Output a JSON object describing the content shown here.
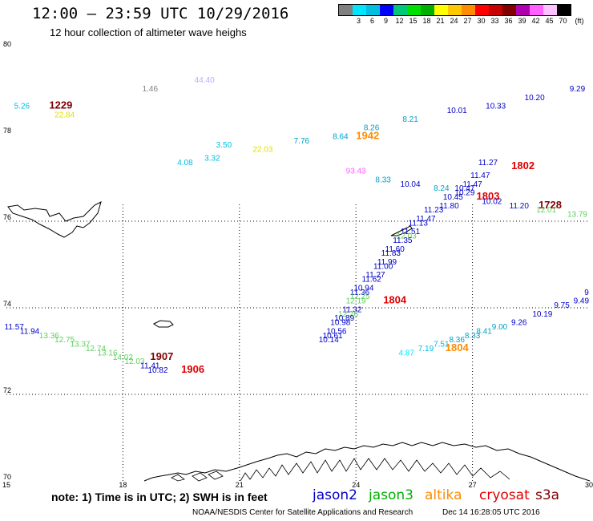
{
  "header": {
    "title": "12:00 – 23:59 UTC 10/29/2016",
    "subtitle": "12 hour collection of altimeter wave heighs"
  },
  "legend": {
    "unit": "(ft)",
    "swatches": [
      {
        "label": "",
        "color": "#808080"
      },
      {
        "label": "3",
        "color": "#00e5ff"
      },
      {
        "label": "6",
        "color": "#00bfe0"
      },
      {
        "label": "9",
        "color": "#0000ff"
      },
      {
        "label": "12",
        "color": "#00c878"
      },
      {
        "label": "15",
        "color": "#00e000"
      },
      {
        "label": "18",
        "color": "#00b000"
      },
      {
        "label": "21",
        "color": "#ffff00"
      },
      {
        "label": "24",
        "color": "#ffc800"
      },
      {
        "label": "27",
        "color": "#ff8c00"
      },
      {
        "label": "30",
        "color": "#ff0000"
      },
      {
        "label": "33",
        "color": "#c80000"
      },
      {
        "label": "36",
        "color": "#800000"
      },
      {
        "label": "39",
        "color": "#b000b0"
      },
      {
        "label": "42",
        "color": "#ff60ff"
      },
      {
        "label": "45",
        "color": "#ffc0ff"
      },
      {
        "label": "70",
        "color": "#000000"
      }
    ]
  },
  "axes": {
    "lat_labels": [
      {
        "text": "80",
        "lat": 80
      },
      {
        "text": "78",
        "lat": 78
      },
      {
        "text": "76",
        "lat": 76
      },
      {
        "text": "74",
        "lat": 74
      },
      {
        "text": "72",
        "lat": 72
      },
      {
        "text": "70",
        "lat": 70
      }
    ],
    "lon_labels": [
      {
        "text": "15",
        "lon": 15
      },
      {
        "text": "18",
        "lon": 18
      },
      {
        "text": "21",
        "lon": 21
      },
      {
        "text": "24",
        "lon": 24
      },
      {
        "text": "27",
        "lon": 27
      },
      {
        "text": "30",
        "lon": 30
      }
    ],
    "lat_range": [
      70,
      80
    ],
    "lon_range": [
      15,
      30
    ]
  },
  "observations": [
    {
      "text": "1.46",
      "lon": 18.7,
      "lat": 79.0,
      "color": "#808080"
    },
    {
      "text": "44.40",
      "lon": 20.1,
      "lat": 79.2,
      "color": "#c0a8ff"
    },
    {
      "text": "5.26",
      "lon": 15.4,
      "lat": 78.6,
      "color": "#00bfe0"
    },
    {
      "text": "1229",
      "lon": 16.4,
      "lat": 78.6,
      "color": "#800000",
      "big": true
    },
    {
      "text": "22.84",
      "lon": 16.5,
      "lat": 78.4,
      "color": "#e0e000"
    },
    {
      "text": "3.50",
      "lon": 20.6,
      "lat": 77.7,
      "color": "#00bfe0"
    },
    {
      "text": "22.03",
      "lon": 21.6,
      "lat": 77.6,
      "color": "#e0e000"
    },
    {
      "text": "3.32",
      "lon": 20.3,
      "lat": 77.4,
      "color": "#00bfe0"
    },
    {
      "text": "4.08",
      "lon": 19.6,
      "lat": 77.3,
      "color": "#00bfe0"
    },
    {
      "text": "7.76",
      "lon": 22.6,
      "lat": 77.8,
      "color": "#00a0c8"
    },
    {
      "text": "8.64",
      "lon": 23.6,
      "lat": 77.9,
      "color": "#00a0c8"
    },
    {
      "text": "1942",
      "lon": 24.3,
      "lat": 77.9,
      "color": "#ff8c00",
      "big": true
    },
    {
      "text": "8.26",
      "lon": 24.4,
      "lat": 78.1,
      "color": "#00a0c8"
    },
    {
      "text": "8.21",
      "lon": 25.4,
      "lat": 78.3,
      "color": "#00a0c8"
    },
    {
      "text": "10.01",
      "lon": 26.6,
      "lat": 78.5,
      "color": "#0000c8"
    },
    {
      "text": "10.33",
      "lon": 27.6,
      "lat": 78.6,
      "color": "#0000c8"
    },
    {
      "text": "10.20",
      "lon": 28.6,
      "lat": 78.8,
      "color": "#0000c8"
    },
    {
      "text": "9.29",
      "lon": 29.7,
      "lat": 79.0,
      "color": "#0000c8"
    },
    {
      "text": "93.43",
      "lon": 24.0,
      "lat": 77.1,
      "color": "#ff60ff"
    },
    {
      "text": "8.33",
      "lon": 24.7,
      "lat": 76.9,
      "color": "#00a0c8"
    },
    {
      "text": "10.04",
      "lon": 25.4,
      "lat": 76.8,
      "color": "#0000c8"
    },
    {
      "text": "8.24",
      "lon": 26.2,
      "lat": 76.7,
      "color": "#00a0c8"
    },
    {
      "text": "11.27",
      "lon": 27.4,
      "lat": 77.3,
      "color": "#0000c8"
    },
    {
      "text": "1802",
      "lon": 28.3,
      "lat": 77.2,
      "color": "#e00000",
      "big": true
    },
    {
      "text": "11.47",
      "lon": 27.2,
      "lat": 77.0,
      "color": "#0000c8"
    },
    {
      "text": "11.47",
      "lon": 27.0,
      "lat": 76.8,
      "color": "#0000c8"
    },
    {
      "text": "10.47",
      "lon": 26.8,
      "lat": 76.7,
      "color": "#0000c8"
    },
    {
      "text": "10.29",
      "lon": 26.8,
      "lat": 76.6,
      "color": "#0000c8"
    },
    {
      "text": "10.45",
      "lon": 26.5,
      "lat": 76.5,
      "color": "#0000c8"
    },
    {
      "text": "1803",
      "lon": 27.4,
      "lat": 76.5,
      "color": "#e00000",
      "big": true
    },
    {
      "text": "10.02",
      "lon": 27.5,
      "lat": 76.4,
      "color": "#0000c8"
    },
    {
      "text": "11.20",
      "lon": 28.2,
      "lat": 76.3,
      "color": "#0000c8"
    },
    {
      "text": "1728",
      "lon": 29.0,
      "lat": 76.3,
      "color": "#800000",
      "big": true
    },
    {
      "text": "12.01",
      "lon": 28.9,
      "lat": 76.2,
      "color": "#60d060"
    },
    {
      "text": "13.79",
      "lon": 29.7,
      "lat": 76.1,
      "color": "#60d060"
    },
    {
      "text": "11.80",
      "lon": 26.4,
      "lat": 76.3,
      "color": "#0000c8"
    },
    {
      "text": "11.23",
      "lon": 26.0,
      "lat": 76.2,
      "color": "#0000c8"
    },
    {
      "text": "11.47",
      "lon": 25.8,
      "lat": 76.0,
      "color": "#0000c8"
    },
    {
      "text": "11.13",
      "lon": 25.6,
      "lat": 75.9,
      "color": "#0000c8"
    },
    {
      "text": "11.51",
      "lon": 25.4,
      "lat": 75.7,
      "color": "#0000c8"
    },
    {
      "text": "12.03",
      "lon": 25.3,
      "lat": 75.6,
      "color": "#60d060"
    },
    {
      "text": "11.35",
      "lon": 25.2,
      "lat": 75.5,
      "color": "#0000c8"
    },
    {
      "text": "11.60",
      "lon": 25.0,
      "lat": 75.3,
      "color": "#0000c8"
    },
    {
      "text": "11.83",
      "lon": 24.9,
      "lat": 75.2,
      "color": "#0000c8"
    },
    {
      "text": "11.99",
      "lon": 24.8,
      "lat": 75.0,
      "color": "#0000c8"
    },
    {
      "text": "11.00",
      "lon": 24.7,
      "lat": 74.9,
      "color": "#0000c8"
    },
    {
      "text": "11.27",
      "lon": 24.5,
      "lat": 74.7,
      "color": "#0000c8"
    },
    {
      "text": "11.62",
      "lon": 24.4,
      "lat": 74.6,
      "color": "#0000c8"
    },
    {
      "text": "10.94",
      "lon": 24.2,
      "lat": 74.4,
      "color": "#0000c8"
    },
    {
      "text": "11.36",
      "lon": 24.1,
      "lat": 74.3,
      "color": "#0000c8"
    },
    {
      "text": "12.25",
      "lon": 24.1,
      "lat": 74.2,
      "color": "#60d060"
    },
    {
      "text": "1804",
      "lon": 25.0,
      "lat": 74.1,
      "color": "#e00000",
      "big": true
    },
    {
      "text": "12.19",
      "lon": 24.0,
      "lat": 74.1,
      "color": "#60d060"
    },
    {
      "text": "11.32",
      "lon": 23.9,
      "lat": 73.9,
      "color": "#0000c8"
    },
    {
      "text": "12.26",
      "lon": 23.8,
      "lat": 73.8,
      "color": "#60d060"
    },
    {
      "text": "10.89",
      "lon": 23.7,
      "lat": 73.7,
      "color": "#0000c8"
    },
    {
      "text": "10.98",
      "lon": 23.6,
      "lat": 73.6,
      "color": "#0000c8"
    },
    {
      "text": "10.56",
      "lon": 23.5,
      "lat": 73.4,
      "color": "#0000c8"
    },
    {
      "text": "10.61",
      "lon": 23.4,
      "lat": 73.3,
      "color": "#0000c8"
    },
    {
      "text": "10.14",
      "lon": 23.3,
      "lat": 73.2,
      "color": "#0000c8"
    },
    {
      "text": "9",
      "lon": 30.0,
      "lat": 74.3,
      "color": "#0000c8"
    },
    {
      "text": "9.49",
      "lon": 29.8,
      "lat": 74.1,
      "color": "#0000c8"
    },
    {
      "text": "9.75",
      "lon": 29.3,
      "lat": 74.0,
      "color": "#0000c8"
    },
    {
      "text": "10.19",
      "lon": 28.8,
      "lat": 73.8,
      "color": "#0000c8"
    },
    {
      "text": "9.26",
      "lon": 28.2,
      "lat": 73.6,
      "color": "#0000c8"
    },
    {
      "text": "9.00",
      "lon": 27.7,
      "lat": 73.5,
      "color": "#00a0c8"
    },
    {
      "text": "8.41",
      "lon": 27.3,
      "lat": 73.4,
      "color": "#00a0c8"
    },
    {
      "text": "8.33",
      "lon": 27.0,
      "lat": 73.3,
      "color": "#00a0c8"
    },
    {
      "text": "8.36",
      "lon": 26.6,
      "lat": 73.2,
      "color": "#00a0c8"
    },
    {
      "text": "7.51",
      "lon": 26.2,
      "lat": 73.1,
      "color": "#00bfe0"
    },
    {
      "text": "7.19",
      "lon": 25.8,
      "lat": 73.0,
      "color": "#00bfe0"
    },
    {
      "text": "1804",
      "lon": 26.6,
      "lat": 73.0,
      "color": "#ff8c00",
      "big": true
    },
    {
      "text": "4.87",
      "lon": 25.3,
      "lat": 72.9,
      "color": "#00e5ff"
    },
    {
      "text": "11.57",
      "lon": 15.2,
      "lat": 73.5,
      "color": "#0000c8"
    },
    {
      "text": "11.94",
      "lon": 15.6,
      "lat": 73.4,
      "color": "#0000c8"
    },
    {
      "text": "13.36",
      "lon": 16.1,
      "lat": 73.3,
      "color": "#60d060"
    },
    {
      "text": "12.75",
      "lon": 16.5,
      "lat": 73.2,
      "color": "#60d060"
    },
    {
      "text": "13.37",
      "lon": 16.9,
      "lat": 73.1,
      "color": "#60d060"
    },
    {
      "text": "12.74",
      "lon": 17.3,
      "lat": 73.0,
      "color": "#60d060"
    },
    {
      "text": "13.16",
      "lon": 17.6,
      "lat": 72.9,
      "color": "#60d060"
    },
    {
      "text": "14.02",
      "lon": 18.0,
      "lat": 72.8,
      "color": "#60d060"
    },
    {
      "text": "12.03",
      "lon": 18.3,
      "lat": 72.7,
      "color": "#60d060"
    },
    {
      "text": "1907",
      "lon": 19.0,
      "lat": 72.8,
      "color": "#800000",
      "big": true
    },
    {
      "text": "11.41",
      "lon": 18.7,
      "lat": 72.6,
      "color": "#0000c8"
    },
    {
      "text": "10.82",
      "lon": 18.9,
      "lat": 72.5,
      "color": "#0000c8"
    },
    {
      "text": "1906",
      "lon": 19.8,
      "lat": 72.5,
      "color": "#e00000",
      "big": true
    }
  ],
  "footer": {
    "note": "note: 1) Time is in UTC; 2) SWH is in feet",
    "satellites": [
      {
        "name": "jason2",
        "color": "#0000c8"
      },
      {
        "name": "jason3",
        "color": "#00b000"
      },
      {
        "name": "altika",
        "color": "#ff8c00"
      },
      {
        "name": "cryosat",
        "color": "#e00000"
      },
      {
        "name": "s3a",
        "color": "#800000"
      }
    ],
    "credit": "NOAA/NESDIS Center for Satellite Applications and Research",
    "stamp": "Dec 14 16:28:05 UTC 2016"
  }
}
